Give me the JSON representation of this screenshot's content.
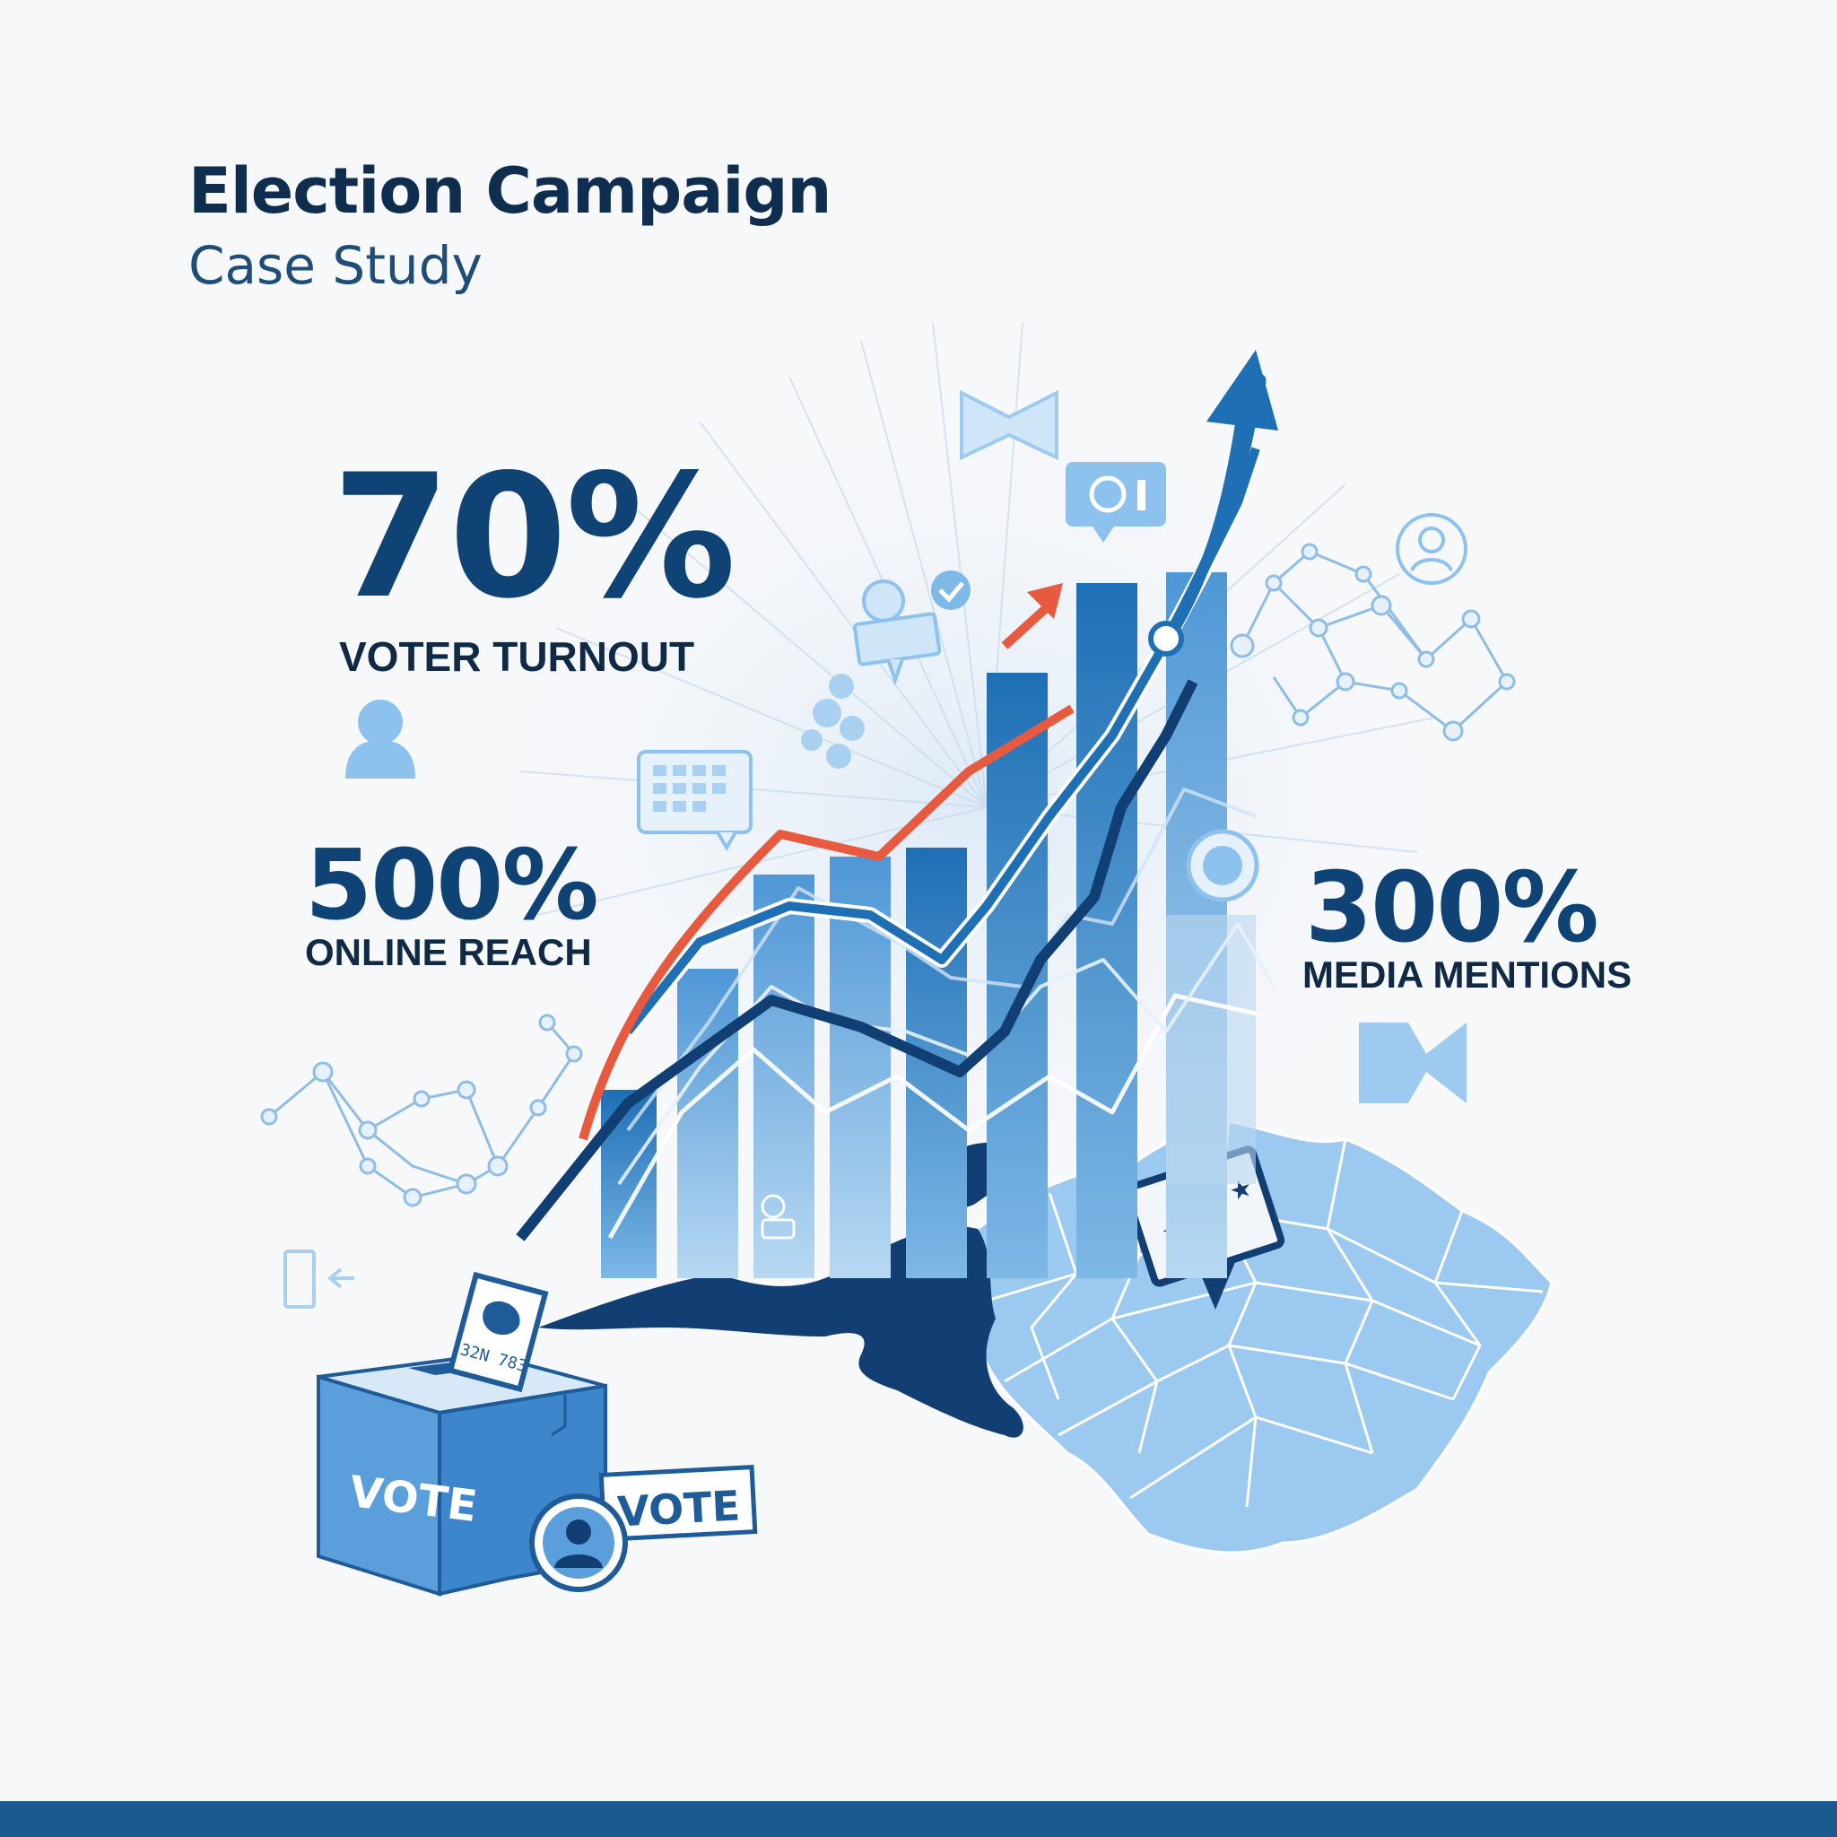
{
  "header": {
    "title": "Election Campaign",
    "subtitle": "Case Study"
  },
  "stats": [
    {
      "value": "70%",
      "label": "VOTER TURNOUT"
    },
    {
      "value": "500%",
      "label": "ONLINE REACH"
    },
    {
      "value": "300%",
      "label": "MEDIA MENTIONS"
    }
  ],
  "illustration": {
    "ballot_box_label": "VOTE",
    "sign_label": "VOTE",
    "ballot_text": "32N\n783",
    "icons": [
      "user-icon",
      "calendar-icon",
      "chat-bubble-icon",
      "location-pin-icon",
      "map-icon",
      "network-icon",
      "megaphone-icon",
      "trend-arrow-icon",
      "checkmark-icon"
    ]
  },
  "colors": {
    "primary": "#0f4275",
    "accent": "#e85a3f",
    "light_blue": "#7eb9e8",
    "map_blue": "#9cc9ef",
    "dark_navy": "#123f73",
    "footer": "#1b5a8e"
  }
}
